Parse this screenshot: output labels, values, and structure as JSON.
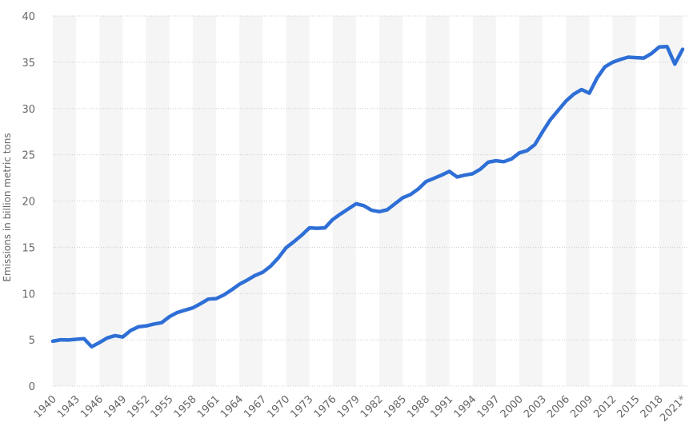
{
  "chart_data": {
    "type": "line",
    "title": "",
    "xlabel": "",
    "ylabel": "Emissions in billion metric tons",
    "ylim": [
      0,
      40
    ],
    "yticks": [
      0,
      5,
      10,
      15,
      20,
      25,
      30,
      35,
      40
    ],
    "grid": true,
    "colors": {
      "line": "#2e6fd6",
      "band": "#f5f5f5",
      "grid": "#cccccc",
      "tick_text": "#666666"
    },
    "x_tick_labels": [
      "1940",
      "1943",
      "1946",
      "1949",
      "1952",
      "1955",
      "1958",
      "1961",
      "1964",
      "1967",
      "1970",
      "1973",
      "1976",
      "1979",
      "1982",
      "1985",
      "1988",
      "1991",
      "1994",
      "1997",
      "2000",
      "2003",
      "2006",
      "2009",
      "2012",
      "2015",
      "2018",
      "2021*"
    ],
    "x": [
      "1940",
      "1941",
      "1942",
      "1943",
      "1944",
      "1945",
      "1946",
      "1947",
      "1948",
      "1949",
      "1950",
      "1951",
      "1952",
      "1953",
      "1954",
      "1955",
      "1956",
      "1957",
      "1958",
      "1959",
      "1960",
      "1961",
      "1962",
      "1963",
      "1964",
      "1965",
      "1966",
      "1967",
      "1968",
      "1969",
      "1970",
      "1971",
      "1972",
      "1973",
      "1974",
      "1975",
      "1976",
      "1977",
      "1978",
      "1979",
      "1980",
      "1981",
      "1982",
      "1983",
      "1984",
      "1985",
      "1986",
      "1987",
      "1988",
      "1989",
      "1990",
      "1991",
      "1992",
      "1993",
      "1994",
      "1995",
      "1996",
      "1997",
      "1998",
      "1999",
      "2000",
      "2001",
      "2002",
      "2003",
      "2004",
      "2005",
      "2006",
      "2007",
      "2008",
      "2009",
      "2010",
      "2011",
      "2012",
      "2013",
      "2014",
      "2015",
      "2016",
      "2017",
      "2018",
      "2019",
      "2020",
      "2021*"
    ],
    "series": [
      {
        "values": [
          4.85,
          5.0,
          4.98,
          5.05,
          5.12,
          4.25,
          4.7,
          5.2,
          5.45,
          5.3,
          6.0,
          6.4,
          6.5,
          6.7,
          6.85,
          7.5,
          7.95,
          8.2,
          8.45,
          8.9,
          9.4,
          9.45,
          9.85,
          10.4,
          11.0,
          11.45,
          11.95,
          12.3,
          12.95,
          13.85,
          14.95,
          15.6,
          16.3,
          17.1,
          17.05,
          17.1,
          18.0,
          18.6,
          19.15,
          19.7,
          19.5,
          19.0,
          18.85,
          19.05,
          19.7,
          20.35,
          20.7,
          21.3,
          22.1,
          22.45,
          22.8,
          23.2,
          22.6,
          22.8,
          22.95,
          23.45,
          24.2,
          24.35,
          24.25,
          24.55,
          25.2,
          25.45,
          26.1,
          27.5,
          28.8,
          29.8,
          30.8,
          31.55,
          32.05,
          31.65,
          33.3,
          34.5,
          35.0,
          35.3,
          35.55,
          35.5,
          35.45,
          35.95,
          36.65,
          36.7,
          34.8,
          36.4
        ]
      }
    ]
  }
}
